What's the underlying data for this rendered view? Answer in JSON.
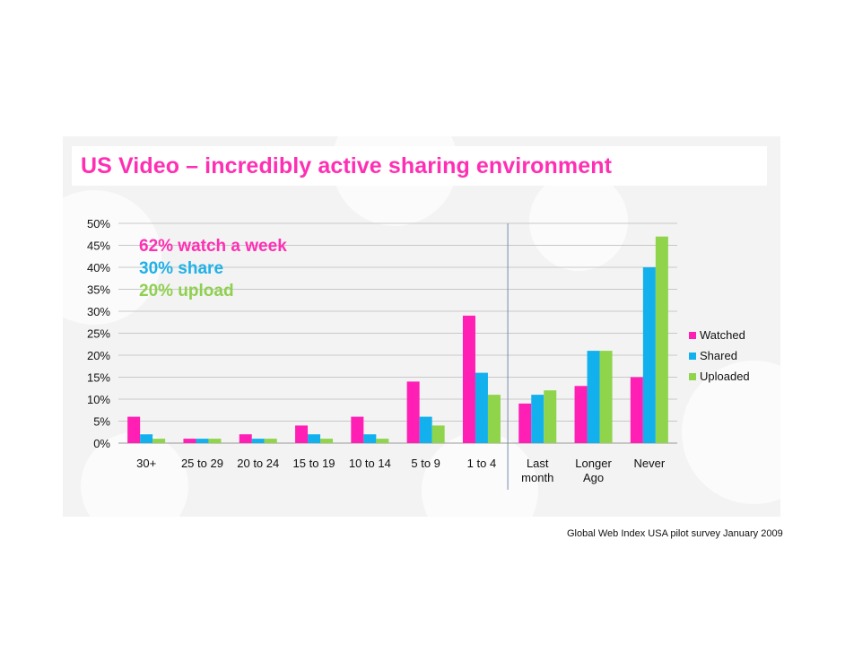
{
  "title": "US Video – incredibly active sharing environment",
  "stats": {
    "watch": "62% watch a week",
    "share": "30% share",
    "upload": "20% upload"
  },
  "source": "Global Web Index USA pilot survey January 2009",
  "colors": {
    "watched": "#ff1fb4",
    "shared": "#12b0ec",
    "uploaded": "#8fd44a",
    "title": "#ff2fb3"
  },
  "chart_data": {
    "type": "bar",
    "categories": [
      "30+",
      "25 to 29",
      "20 to 24",
      "15 to 19",
      "10 to 14",
      "5 to 9",
      "1 to 4",
      "Last month",
      "Longer Ago",
      "Never"
    ],
    "category_lines": [
      [
        "30+"
      ],
      [
        "25 to 29"
      ],
      [
        "20 to 24"
      ],
      [
        "15 to 19"
      ],
      [
        "10 to 14"
      ],
      [
        "5 to 9"
      ],
      [
        "1 to 4"
      ],
      [
        "Last",
        "month"
      ],
      [
        "Longer",
        "Ago"
      ],
      [
        "Never"
      ]
    ],
    "series": [
      {
        "name": "Watched",
        "values": [
          6,
          1,
          2,
          4,
          6,
          14,
          29,
          9,
          13,
          15
        ]
      },
      {
        "name": "Shared",
        "values": [
          2,
          1,
          1,
          2,
          2,
          6,
          16,
          11,
          21,
          40
        ]
      },
      {
        "name": "Uploaded",
        "values": [
          1,
          1,
          1,
          1,
          1,
          4,
          11,
          12,
          21,
          47
        ]
      }
    ],
    "ylim": [
      0,
      50
    ],
    "yticks": [
      "0%",
      "5%",
      "10%",
      "15%",
      "20%",
      "25%",
      "30%",
      "35%",
      "40%",
      "45%",
      "50%"
    ],
    "grid": true,
    "legend": "right",
    "divider_after_category": "1 to 4"
  }
}
